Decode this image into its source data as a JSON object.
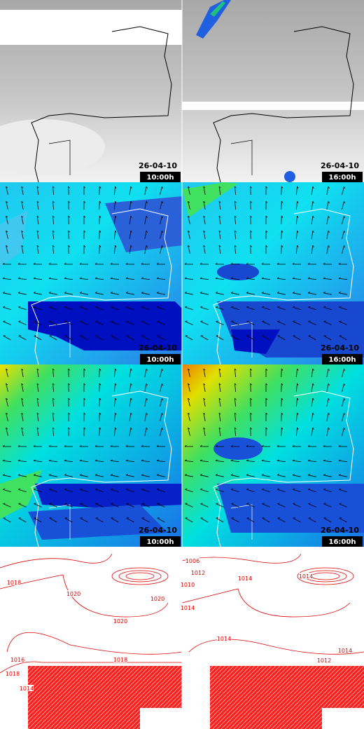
{
  "panels": [
    {
      "date": "26-04-10",
      "time": "10:00h"
    },
    {
      "date": "26-04-10",
      "time": "16:00h"
    },
    {
      "date": "26-04-10",
      "time": "10:00h"
    },
    {
      "date": "26-04-10",
      "time": "16:00h"
    },
    {
      "date": "26-04-10",
      "time": "10:00h"
    },
    {
      "date": "26-04-10",
      "time": "16:00h"
    }
  ],
  "pressure_panels": [
    {
      "labels": [
        "1018",
        "1020",
        "1020",
        "1020",
        "1016",
        "1018",
        "1018",
        "1014"
      ]
    },
    {
      "labels": [
        "1006",
        "1012",
        "1010",
        "1014",
        "1014",
        "1014",
        "1014",
        "1012",
        "1014"
      ]
    }
  ]
}
